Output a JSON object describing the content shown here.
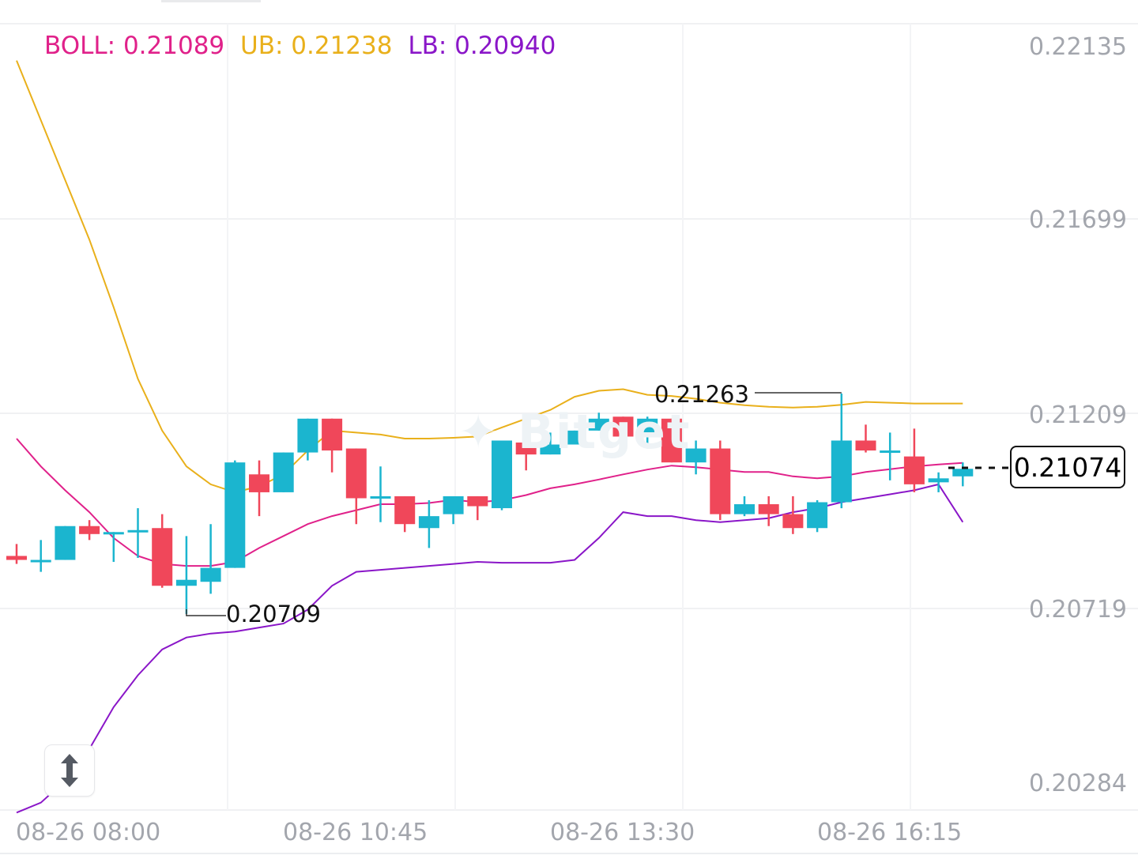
{
  "chart_data": {
    "type": "candlestick",
    "indicator": {
      "boll_label": "BOLL: 0.21089",
      "ub_label": "UB: 0.21238",
      "lb_label": "LB: 0.20940",
      "colors": {
        "boll": "#e0218a",
        "ub": "#e9b01b",
        "lb": "#8a16c8"
      }
    },
    "y_ticks": [
      "0.22135",
      "0.21699",
      "0.21209",
      "0.20719",
      "0.20284"
    ],
    "x_ticks": [
      "08-26 08:00",
      "08-26 10:45",
      "08-26 13:30",
      "08-26 16:15"
    ],
    "last_price": "0.21074",
    "high_marker": "0.21263",
    "low_marker": "0.20709",
    "ylim": [
      0.2028,
      0.2225
    ],
    "colors": {
      "up": "#1bb5cf",
      "down": "#f0475a"
    },
    "candles": [
      {
        "o": 0.20855,
        "h": 0.20885,
        "l": 0.20835,
        "c": 0.20845
      },
      {
        "o": 0.20845,
        "h": 0.20895,
        "l": 0.20815,
        "c": 0.20845
      },
      {
        "o": 0.20845,
        "h": 0.2093,
        "l": 0.20845,
        "c": 0.2093
      },
      {
        "o": 0.2093,
        "h": 0.20945,
        "l": 0.20895,
        "c": 0.2091
      },
      {
        "o": 0.20915,
        "h": 0.20915,
        "l": 0.2084,
        "c": 0.20915
      },
      {
        "o": 0.2092,
        "h": 0.20975,
        "l": 0.2085,
        "c": 0.2092
      },
      {
        "o": 0.20925,
        "h": 0.2096,
        "l": 0.20775,
        "c": 0.2078
      },
      {
        "o": 0.2078,
        "h": 0.20905,
        "l": 0.20709,
        "c": 0.20795
      },
      {
        "o": 0.2079,
        "h": 0.20935,
        "l": 0.2076,
        "c": 0.20825
      },
      {
        "o": 0.20825,
        "h": 0.21095,
        "l": 0.20825,
        "c": 0.2109
      },
      {
        "o": 0.2106,
        "h": 0.21095,
        "l": 0.20955,
        "c": 0.21015
      },
      {
        "o": 0.21015,
        "h": 0.21115,
        "l": 0.21015,
        "c": 0.21115
      },
      {
        "o": 0.21115,
        "h": 0.212,
        "l": 0.21095,
        "c": 0.212
      },
      {
        "o": 0.212,
        "h": 0.212,
        "l": 0.21065,
        "c": 0.2112
      },
      {
        "o": 0.21125,
        "h": 0.21125,
        "l": 0.20935,
        "c": 0.21
      },
      {
        "o": 0.21005,
        "h": 0.2108,
        "l": 0.2094,
        "c": 0.21005
      },
      {
        "o": 0.21005,
        "h": 0.21005,
        "l": 0.20915,
        "c": 0.20935
      },
      {
        "o": 0.20925,
        "h": 0.20995,
        "l": 0.20875,
        "c": 0.20955
      },
      {
        "o": 0.2096,
        "h": 0.21,
        "l": 0.20935,
        "c": 0.21005
      },
      {
        "o": 0.21005,
        "h": 0.21005,
        "l": 0.20945,
        "c": 0.2098
      },
      {
        "o": 0.20975,
        "h": 0.21145,
        "l": 0.2097,
        "c": 0.21145
      },
      {
        "o": 0.2114,
        "h": 0.21165,
        "l": 0.2107,
        "c": 0.2111
      },
      {
        "o": 0.2111,
        "h": 0.21165,
        "l": 0.2111,
        "c": 0.21135
      },
      {
        "o": 0.21135,
        "h": 0.2117,
        "l": 0.21135,
        "c": 0.2117
      },
      {
        "o": 0.2117,
        "h": 0.21215,
        "l": 0.2117,
        "c": 0.212
      },
      {
        "o": 0.21205,
        "h": 0.21205,
        "l": 0.21155,
        "c": 0.21155
      },
      {
        "o": 0.21155,
        "h": 0.21205,
        "l": 0.21125,
        "c": 0.212
      },
      {
        "o": 0.212,
        "h": 0.212,
        "l": 0.2109,
        "c": 0.2109
      },
      {
        "o": 0.2109,
        "h": 0.21145,
        "l": 0.2106,
        "c": 0.21125
      },
      {
        "o": 0.21125,
        "h": 0.21145,
        "l": 0.20945,
        "c": 0.2096
      },
      {
        "o": 0.2096,
        "h": 0.21005,
        "l": 0.20955,
        "c": 0.20985
      },
      {
        "o": 0.20985,
        "h": 0.21005,
        "l": 0.2093,
        "c": 0.2096
      },
      {
        "o": 0.2096,
        "h": 0.21005,
        "l": 0.2091,
        "c": 0.20925
      },
      {
        "o": 0.20925,
        "h": 0.20995,
        "l": 0.20915,
        "c": 0.2099
      },
      {
        "o": 0.2099,
        "h": 0.21263,
        "l": 0.20975,
        "c": 0.21145
      },
      {
        "o": 0.21145,
        "h": 0.21185,
        "l": 0.21115,
        "c": 0.2112
      },
      {
        "o": 0.2112,
        "h": 0.21165,
        "l": 0.21045,
        "c": 0.2112
      },
      {
        "o": 0.21105,
        "h": 0.21175,
        "l": 0.21015,
        "c": 0.21035
      },
      {
        "o": 0.2104,
        "h": 0.21065,
        "l": 0.21015,
        "c": 0.2105
      },
      {
        "o": 0.21055,
        "h": 0.2109,
        "l": 0.2103,
        "c": 0.21074
      }
    ],
    "ub": [
      0.221,
      0.2195,
      0.218,
      0.2165,
      0.2148,
      0.213,
      0.2117,
      0.2108,
      0.21035,
      0.21015,
      0.2103,
      0.2106,
      0.2112,
      0.2117,
      0.21165,
      0.2116,
      0.2115,
      0.2115,
      0.21152,
      0.21155,
      0.21178,
      0.212,
      0.21222,
      0.21255,
      0.2127,
      0.21274,
      0.2126,
      0.21257,
      0.2125,
      0.2124,
      0.21234,
      0.2123,
      0.21228,
      0.2123,
      0.21235,
      0.21242,
      0.2124,
      0.21238,
      0.21238,
      0.21238
    ],
    "boll": [
      0.2115,
      0.2108,
      0.2102,
      0.20965,
      0.209,
      0.20855,
      0.20835,
      0.2083,
      0.2083,
      0.2084,
      0.20875,
      0.20905,
      0.20935,
      0.20955,
      0.2097,
      0.20985,
      0.20985,
      0.20988,
      0.20996,
      0.2099,
      0.20995,
      0.21008,
      0.21025,
      0.21035,
      0.21047,
      0.2106,
      0.21072,
      0.21082,
      0.21078,
      0.21072,
      0.21066,
      0.21066,
      0.21055,
      0.2105,
      0.21055,
      0.21066,
      0.21073,
      0.2108,
      0.21085,
      0.21089
    ],
    "lb": [
      0.2021,
      0.20235,
      0.2029,
      0.2037,
      0.20475,
      0.20555,
      0.2062,
      0.2065,
      0.2066,
      0.20665,
      0.20675,
      0.20685,
      0.2072,
      0.2078,
      0.20815,
      0.2082,
      0.20825,
      0.2083,
      0.20835,
      0.2084,
      0.20838,
      0.20838,
      0.20838,
      0.20845,
      0.209,
      0.20965,
      0.20955,
      0.20955,
      0.20945,
      0.2094,
      0.20945,
      0.2095,
      0.20965,
      0.20975,
      0.2099,
      0.21,
      0.2101,
      0.2102,
      0.21035,
      0.2094
    ]
  }
}
